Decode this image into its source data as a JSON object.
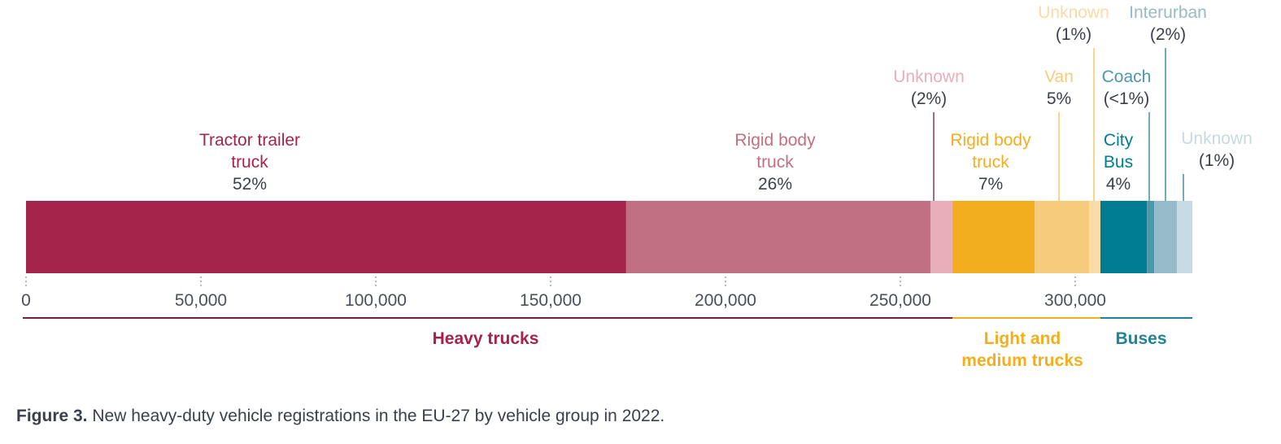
{
  "chart_data": {
    "type": "bar",
    "orientation": "horizontal-stacked",
    "title": "",
    "xlabel": "",
    "ylabel": "",
    "xlim": [
      0,
      335000
    ],
    "x_ticks": [
      0,
      50000,
      100000,
      150000,
      200000,
      250000,
      300000
    ],
    "x_tick_labels": [
      "0",
      "50,000",
      "100,000",
      "150,000",
      "200,000",
      "250,000",
      "300,000"
    ],
    "grid": false,
    "series": [
      {
        "label_lines": [
          "Tractor trailer",
          "truck"
        ],
        "pct": "52%",
        "value": 171600,
        "group": "heavy",
        "color": "#A3234A"
      },
      {
        "label_lines": [
          "Rigid body",
          "truck"
        ],
        "pct": "26%",
        "value": 87000,
        "group": "heavy",
        "color": "#C07080"
      },
      {
        "label_lines": [
          "Unknown"
        ],
        "pct": "(2%)",
        "value": 6300,
        "group": "heavy",
        "color": "#E8AFB8"
      },
      {
        "label_lines": [
          "Rigid body",
          "truck"
        ],
        "pct": "7%",
        "value": 23500,
        "group": "light",
        "color": "#F2AE1F"
      },
      {
        "label_lines": [
          "Van"
        ],
        "pct": "5%",
        "value": 15600,
        "group": "light",
        "color": "#F7CB7C"
      },
      {
        "label_lines": [
          "Unknown"
        ],
        "pct": "(1%)",
        "value": 3200,
        "group": "light",
        "color": "#F9DBA8"
      },
      {
        "label_lines": [
          "City",
          "Bus"
        ],
        "pct": "4%",
        "value": 13300,
        "group": "buses",
        "color": "#007D93"
      },
      {
        "label_lines": [
          "Coach"
        ],
        "pct": "(<1%)",
        "value": 2100,
        "group": "buses",
        "color": "#4C98AB"
      },
      {
        "label_lines": [
          "Interurban"
        ],
        "pct": "(2%)",
        "value": 6500,
        "group": "buses",
        "color": "#96BAC8"
      },
      {
        "label_lines": [
          "Unknown"
        ],
        "pct": "(1%)",
        "value": 4400,
        "group": "buses",
        "color": "#C5DAE2"
      }
    ],
    "groups": [
      {
        "id": "heavy",
        "label_lines": [
          "Heavy trucks"
        ],
        "color": "#A3234A",
        "line_color": "#7A1D3E"
      },
      {
        "id": "light",
        "label_lines": [
          "Light and",
          "medium trucks"
        ],
        "color": "#F2AE1F",
        "line_color": "#F2AE1F"
      },
      {
        "id": "buses",
        "label_lines": [
          "Buses"
        ],
        "color": "#1E8499",
        "line_color": "#1E8499"
      }
    ]
  },
  "caption": {
    "label": "Figure 3.",
    "text": " New heavy-duty vehicle registrations in the EU-27 by vehicle group in 2022."
  },
  "colors": {
    "text": "#3A3F4A",
    "tick": "#4A4F58"
  }
}
